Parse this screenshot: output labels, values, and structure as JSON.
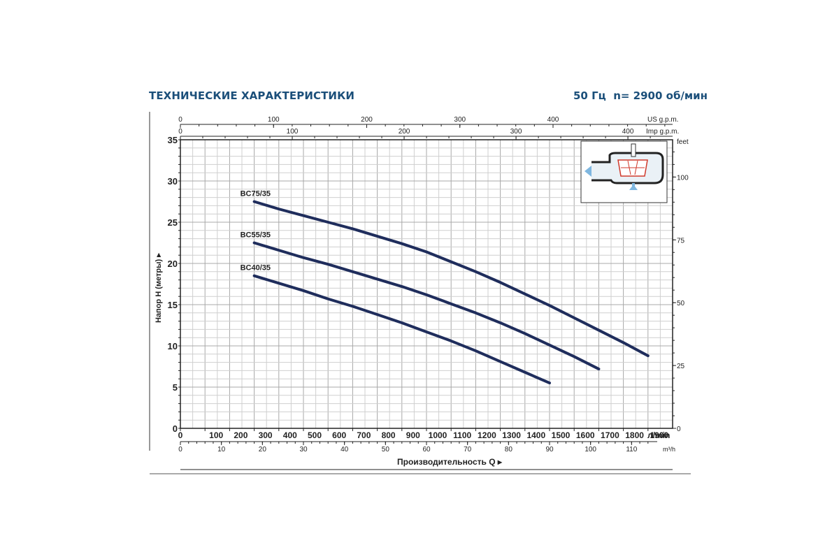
{
  "header": {
    "title": "ТЕХНИЧЕСКИЕ ХАРАКТЕРИСТИКИ",
    "spec": "50 Гц  n= 2900 об/мин"
  },
  "chart_data": {
    "type": "line",
    "title": "",
    "xlabel": "Производительность Q",
    "ylabel": "Напор H  (метры)",
    "xlim": [
      0,
      2000
    ],
    "ylim": [
      0,
      35
    ],
    "grid": true,
    "x_ticks": [
      0,
      100,
      200,
      300,
      400,
      500,
      600,
      700,
      800,
      900,
      1000,
      1100,
      1200,
      1300,
      1400,
      1500,
      1600,
      1700,
      1800,
      1900
    ],
    "x_unit": "л/min",
    "y_ticks": [
      0,
      5,
      10,
      15,
      20,
      25,
      30,
      35
    ],
    "secondary_axes": {
      "m3h": {
        "unit": "m³/h",
        "ticks": [
          0,
          10,
          20,
          30,
          40,
          50,
          60,
          70,
          80,
          90,
          100,
          110
        ]
      },
      "us_gpm": {
        "unit": "US g.p.m.",
        "ticks": [
          0,
          100,
          200,
          300,
          400
        ]
      },
      "imp_gpm": {
        "unit": "Imp g.p.m.",
        "ticks": [
          0,
          100,
          200,
          300,
          400
        ]
      },
      "feet": {
        "unit": "feet",
        "ticks": [
          0,
          25,
          50,
          75,
          100
        ]
      }
    },
    "series": [
      {
        "name": "BC75/35",
        "x": [
          300,
          400,
          500,
          600,
          700,
          800,
          900,
          1000,
          1100,
          1200,
          1300,
          1400,
          1500,
          1600,
          1700,
          1800,
          1900
        ],
        "y": [
          27.5,
          26.6,
          25.8,
          25.0,
          24.2,
          23.3,
          22.4,
          21.4,
          20.2,
          19.0,
          17.7,
          16.3,
          14.9,
          13.4,
          11.9,
          10.4,
          8.8
        ]
      },
      {
        "name": "BC55/35",
        "x": [
          300,
          400,
          500,
          600,
          700,
          800,
          900,
          1000,
          1100,
          1200,
          1300,
          1400,
          1500,
          1600,
          1700
        ],
        "y": [
          22.5,
          21.6,
          20.7,
          19.9,
          19.0,
          18.1,
          17.2,
          16.2,
          15.1,
          14.0,
          12.8,
          11.5,
          10.1,
          8.7,
          7.2
        ]
      },
      {
        "name": "BC40/35",
        "x": [
          300,
          400,
          500,
          600,
          700,
          800,
          900,
          1000,
          1100,
          1200,
          1300,
          1400,
          1500
        ],
        "y": [
          18.5,
          17.6,
          16.7,
          15.7,
          14.8,
          13.8,
          12.8,
          11.7,
          10.6,
          9.4,
          8.1,
          6.8,
          5.5
        ]
      }
    ]
  }
}
